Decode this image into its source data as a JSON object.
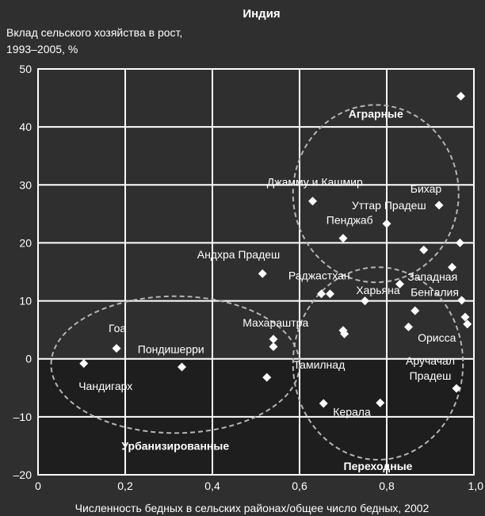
{
  "chart_data": {
    "type": "scatter",
    "title": "Индия",
    "ylabel_lines": [
      "Вклад сельского хозяйства в рост,",
      "1993–2005, %"
    ],
    "xlabel": "Численность бедных в сельских районах/общее число бедных, 2002",
    "xlim": [
      0,
      1
    ],
    "ylim": [
      -20,
      50
    ],
    "x_ticks": [
      {
        "value": 0,
        "label": "0"
      },
      {
        "value": 0.2,
        "label": "0,2"
      },
      {
        "value": 0.4,
        "label": "0,4"
      },
      {
        "value": 0.6,
        "label": "0,6"
      },
      {
        "value": 0.8,
        "label": "0,8"
      },
      {
        "value": 1.0,
        "label": "1,0"
      }
    ],
    "y_ticks": [
      {
        "value": -20,
        "label": "–20"
      },
      {
        "value": -10,
        "label": "–10"
      },
      {
        "value": 0,
        "label": "0"
      },
      {
        "value": 10,
        "label": "10"
      },
      {
        "value": 20,
        "label": "20"
      },
      {
        "value": 30,
        "label": "30"
      },
      {
        "value": 40,
        "label": "40"
      },
      {
        "value": 50,
        "label": "50"
      }
    ],
    "grid": true,
    "colors": {
      "background": "#2f2f2f",
      "plot_upper": "#2f2f2f",
      "plot_lower": "#1e1e1e",
      "grid": "#ffffff",
      "marker": "#ffffff",
      "ellipse": "#b5b5b5"
    },
    "points": [
      {
        "x": 0.105,
        "y": -0.8
      },
      {
        "x": 0.18,
        "y": 1.8
      },
      {
        "x": 0.33,
        "y": -1.4
      },
      {
        "x": 0.515,
        "y": 14.7
      },
      {
        "x": 0.525,
        "y": -3.2
      },
      {
        "x": 0.54,
        "y": 3.4
      },
      {
        "x": 0.54,
        "y": 2.1
      },
      {
        "x": 0.63,
        "y": 27.2
      },
      {
        "x": 0.65,
        "y": 11.2
      },
      {
        "x": 0.67,
        "y": 11.2
      },
      {
        "x": 0.655,
        "y": -7.7
      },
      {
        "x": 0.7,
        "y": 20.8
      },
      {
        "x": 0.7,
        "y": 4.9
      },
      {
        "x": 0.703,
        "y": 4.3
      },
      {
        "x": 0.75,
        "y": 10.0
      },
      {
        "x": 0.785,
        "y": -7.6
      },
      {
        "x": 0.8,
        "y": 23.3
      },
      {
        "x": 0.83,
        "y": 12.9
      },
      {
        "x": 0.85,
        "y": 5.5
      },
      {
        "x": 0.865,
        "y": 8.3
      },
      {
        "x": 0.885,
        "y": 18.8
      },
      {
        "x": 0.92,
        "y": 26.5
      },
      {
        "x": 0.95,
        "y": 15.8
      },
      {
        "x": 0.96,
        "y": -5.1
      },
      {
        "x": 0.968,
        "y": 20.0
      },
      {
        "x": 0.97,
        "y": 45.3
      },
      {
        "x": 0.972,
        "y": 10.1
      },
      {
        "x": 0.98,
        "y": 7.2
      },
      {
        "x": 0.985,
        "y": 6.0
      }
    ],
    "point_labels": [
      {
        "text": "Чандигарх",
        "x": 0.155,
        "y": -5.4
      },
      {
        "text": "Гоа",
        "x": 0.182,
        "y": 4.6
      },
      {
        "text": "Пондишерри",
        "x": 0.305,
        "y": 1.0
      },
      {
        "text": "Андхра Прадеш",
        "x": 0.46,
        "y": 17.3
      },
      {
        "text": "Раджастхан",
        "x": 0.645,
        "y": 13.7
      },
      {
        "text": "Махараштра",
        "x": 0.545,
        "y": 5.6
      },
      {
        "text": "Тамилнад",
        "x": 0.645,
        "y": -1.7
      },
      {
        "text": "Керала",
        "x": 0.72,
        "y": -9.8
      },
      {
        "text": "Джамму и Кашмир",
        "x": 0.635,
        "y": 29.8
      },
      {
        "text": "Пенджаб",
        "x": 0.715,
        "y": 23.3
      },
      {
        "text": "Уттар Прадеш",
        "x": 0.805,
        "y": 25.8
      },
      {
        "text": "Бихар",
        "x": 0.89,
        "y": 28.7
      },
      {
        "text": "Харьяна",
        "x": 0.78,
        "y": 11.2
      },
      {
        "text": "Западная",
        "x": 0.905,
        "y": 13.5
      },
      {
        "text": "Бенгалия",
        "x": 0.91,
        "y": 10.8
      },
      {
        "text": "Орисса",
        "x": 0.915,
        "y": 3.0
      },
      {
        "text": "Аручачал",
        "x": 0.9,
        "y": -1.0
      },
      {
        "text": "Прадеш",
        "x": 0.9,
        "y": -3.6
      }
    ],
    "groups": [
      {
        "name": "Аграрные",
        "cx": 0.775,
        "cy": 28.5,
        "rx": 0.19,
        "ry": 15.3,
        "label_x": 0.775,
        "label_y": 41.6
      },
      {
        "name": "Урбанизированные",
        "cx": 0.315,
        "cy": -1.0,
        "rx": 0.285,
        "ry": 11.8,
        "label_x": 0.315,
        "label_y": -15.7
      },
      {
        "name": "Переходные",
        "cx": 0.78,
        "cy": -0.8,
        "rx": 0.195,
        "ry": 16.6,
        "label_x": 0.78,
        "label_y": -19.2
      }
    ]
  }
}
